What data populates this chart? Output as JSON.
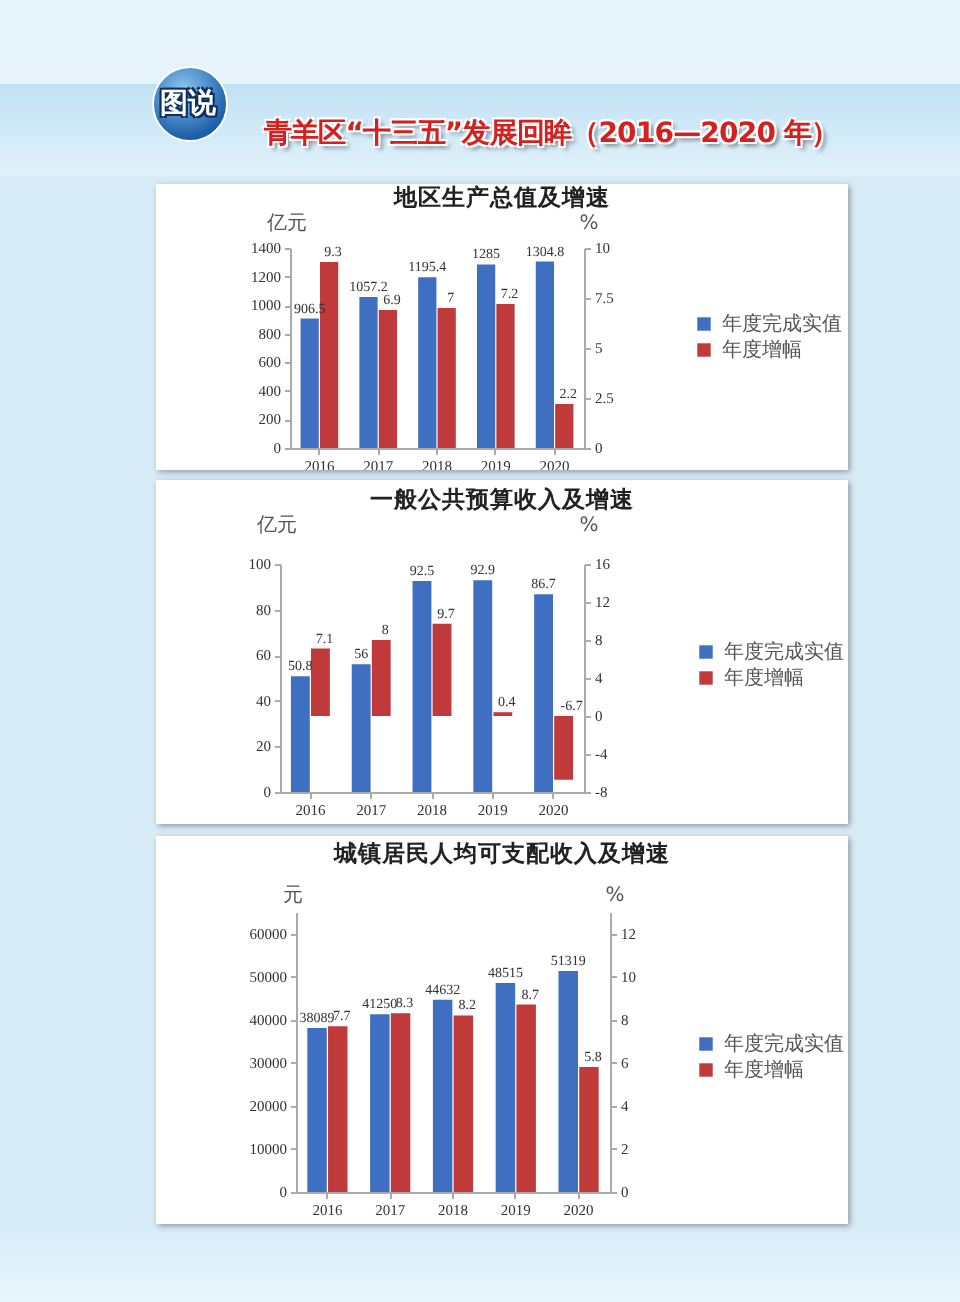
{
  "chart_data": [
    {
      "type": "bar",
      "title": "地区生产总值及增速",
      "annotations": [
        "图说",
        "青羊区“十三五”发展回眸（2016—2020 年）"
      ],
      "categories": [
        "2016",
        "2017",
        "2018",
        "2019",
        "2020"
      ],
      "series": [
        {
          "name": "年度完成实值",
          "color": "#3f6fc1",
          "values": [
            906.5,
            1057.2,
            1195.4,
            1285,
            1304.8
          ]
        },
        {
          "name": "年度增幅",
          "color": "#c0393b",
          "axis": "y2",
          "values": [
            9.3,
            6.9,
            7,
            7.2,
            2.2
          ]
        }
      ],
      "ylabel": "亿元",
      "y2label": "%",
      "ylim": [
        0,
        1400
      ],
      "yticks": [
        0,
        200,
        400,
        600,
        800,
        1000,
        1200,
        1400
      ],
      "y2lim": [
        0,
        10
      ],
      "y2ticks": [
        0,
        2.5,
        5,
        7.5,
        10
      ],
      "data_labels": true,
      "legend": "right"
    },
    {
      "type": "bar",
      "title": "一般公共预算收入及增速",
      "categories": [
        "2016",
        "2017",
        "2018",
        "2019",
        "2020"
      ],
      "series": [
        {
          "name": "年度完成实值",
          "color": "#3f6fc1",
          "values": [
            50.8,
            56,
            92.5,
            92.9,
            86.7
          ]
        },
        {
          "name": "年度增幅",
          "color": "#c0393b",
          "axis": "y2",
          "values": [
            7.1,
            8,
            9.7,
            0.4,
            -6.7
          ]
        }
      ],
      "ylabel": "亿元",
      "y2label": "%",
      "ylim": [
        0,
        100
      ],
      "yticks": [
        0,
        20,
        40,
        60,
        80,
        100
      ],
      "y2lim": [
        -8,
        16
      ],
      "y2ticks": [
        -8,
        -4,
        0,
        4,
        8,
        12,
        16
      ],
      "data_labels": true,
      "legend": "right"
    },
    {
      "type": "bar",
      "title": "城镇居民人均可支配收入及增速",
      "categories": [
        "2016",
        "2017",
        "2018",
        "2019",
        "2020"
      ],
      "series": [
        {
          "name": "年度完成实值",
          "color": "#3f6fc1",
          "values": [
            38089,
            41250,
            44632,
            48515,
            51319
          ]
        },
        {
          "name": "年度增幅",
          "color": "#c0393b",
          "axis": "y2",
          "values": [
            7.7,
            8.3,
            8.2,
            8.7,
            5.8
          ]
        }
      ],
      "ylabel": "元",
      "y2label": "%",
      "ylim": [
        0,
        65000
      ],
      "yticks": [
        0,
        10000,
        20000,
        30000,
        40000,
        50000,
        60000
      ],
      "y2lim": [
        0,
        13
      ],
      "y2ticks": [
        0,
        2,
        4,
        6,
        8,
        10,
        12
      ],
      "data_labels": true,
      "legend": "right"
    }
  ]
}
